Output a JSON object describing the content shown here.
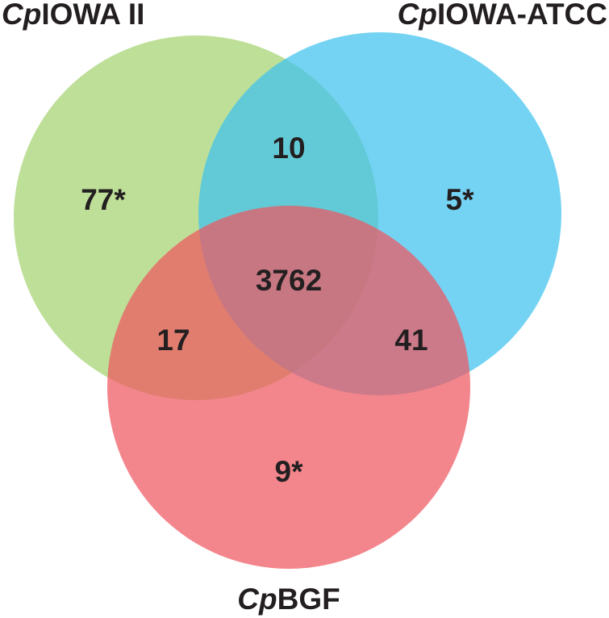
{
  "sets": [
    {
      "prefix": "Cp",
      "name": "IOWA II"
    },
    {
      "prefix": "Cp",
      "name": "IOWA-ATCC"
    },
    {
      "prefix": "Cp",
      "name": "BGF"
    }
  ],
  "regions": {
    "only_iowa_ii": "77*",
    "iowa_ii_and_iowa_atcc": "10",
    "only_iowa_atcc": "5*",
    "all_three": "3762",
    "iowa_ii_and_bgf": "17",
    "iowa_atcc_and_bgf": "41",
    "only_bgf": "9*"
  }
}
